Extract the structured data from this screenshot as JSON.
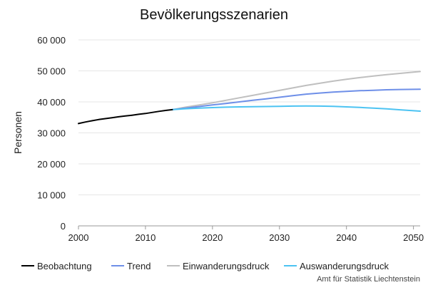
{
  "chart_data": {
    "type": "line",
    "title": "Bevölkerungsszenarien",
    "ylabel": "Personen",
    "xlabel": "",
    "xlim": [
      2000,
      2051
    ],
    "ylim": [
      0,
      60000
    ],
    "xticks": [
      2000,
      2010,
      2020,
      2030,
      2040,
      2050
    ],
    "yticks": [
      0,
      10000,
      20000,
      30000,
      40000,
      50000,
      60000
    ],
    "xtick_labels": [
      "2000",
      "2010",
      "2020",
      "2030",
      "2040",
      "2050"
    ],
    "ytick_labels": [
      "0",
      "10 000",
      "20 000",
      "30 000",
      "40 000",
      "50 000",
      "60 000"
    ],
    "grid": "horizontal",
    "legend_position": "bottom",
    "series": [
      {
        "name": "Beobachtung",
        "color": "#000000",
        "points": [
          [
            2000,
            33000
          ],
          [
            2001,
            33500
          ],
          [
            2002,
            33900
          ],
          [
            2003,
            34300
          ],
          [
            2004,
            34600
          ],
          [
            2005,
            34900
          ],
          [
            2006,
            35200
          ],
          [
            2007,
            35450
          ],
          [
            2008,
            35700
          ],
          [
            2009,
            36000
          ],
          [
            2010,
            36250
          ],
          [
            2011,
            36600
          ],
          [
            2012,
            36950
          ],
          [
            2013,
            37250
          ],
          [
            2014,
            37500
          ]
        ]
      },
      {
        "name": "Trend",
        "color": "#6E8FE8",
        "points": [
          [
            2014,
            37500
          ],
          [
            2016,
            38000
          ],
          [
            2018,
            38500
          ],
          [
            2020,
            39000
          ],
          [
            2022,
            39500
          ],
          [
            2024,
            40000
          ],
          [
            2026,
            40500
          ],
          [
            2028,
            41000
          ],
          [
            2030,
            41500
          ],
          [
            2032,
            42000
          ],
          [
            2034,
            42500
          ],
          [
            2036,
            42850
          ],
          [
            2038,
            43150
          ],
          [
            2040,
            43400
          ],
          [
            2042,
            43600
          ],
          [
            2044,
            43750
          ],
          [
            2046,
            43900
          ],
          [
            2048,
            44000
          ],
          [
            2050,
            44050
          ],
          [
            2051,
            44100
          ]
        ]
      },
      {
        "name": "Einwanderungsdruck",
        "color": "#BFBFBF",
        "points": [
          [
            2014,
            37500
          ],
          [
            2016,
            38300
          ],
          [
            2018,
            39000
          ],
          [
            2020,
            39700
          ],
          [
            2022,
            40500
          ],
          [
            2024,
            41300
          ],
          [
            2026,
            42100
          ],
          [
            2028,
            42900
          ],
          [
            2030,
            43700
          ],
          [
            2032,
            44500
          ],
          [
            2034,
            45300
          ],
          [
            2036,
            46000
          ],
          [
            2038,
            46700
          ],
          [
            2040,
            47300
          ],
          [
            2042,
            47850
          ],
          [
            2044,
            48350
          ],
          [
            2046,
            48800
          ],
          [
            2048,
            49200
          ],
          [
            2050,
            49600
          ],
          [
            2051,
            49800
          ]
        ]
      },
      {
        "name": "Auswanderungsdruck",
        "color": "#4CC3F2",
        "points": [
          [
            2014,
            37500
          ],
          [
            2016,
            37800
          ],
          [
            2018,
            38000
          ],
          [
            2020,
            38150
          ],
          [
            2022,
            38300
          ],
          [
            2024,
            38400
          ],
          [
            2026,
            38450
          ],
          [
            2028,
            38500
          ],
          [
            2030,
            38550
          ],
          [
            2032,
            38650
          ],
          [
            2034,
            38700
          ],
          [
            2036,
            38650
          ],
          [
            2038,
            38550
          ],
          [
            2040,
            38400
          ],
          [
            2042,
            38200
          ],
          [
            2044,
            38000
          ],
          [
            2046,
            37750
          ],
          [
            2048,
            37450
          ],
          [
            2050,
            37150
          ],
          [
            2051,
            37000
          ]
        ]
      }
    ]
  },
  "credit": "Amt für Statistik Liechtenstein"
}
